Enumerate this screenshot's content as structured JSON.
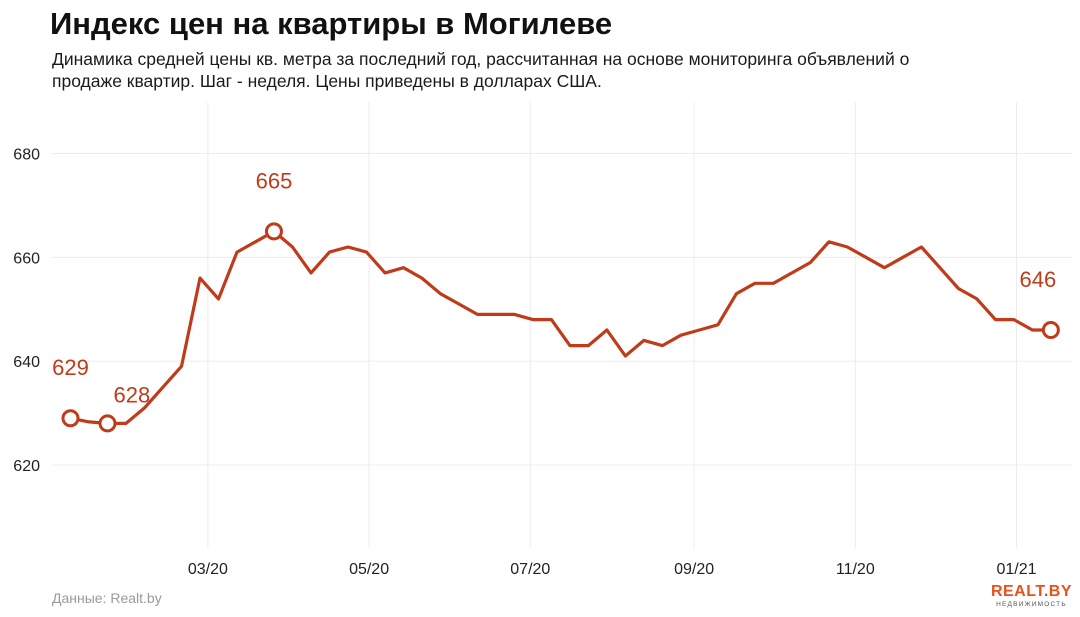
{
  "header": {
    "title": "Индекс цен на квартиры в Могилеве",
    "subtitle": "Динамика средней цены кв. метра за последний год, рассчитанная на основе мониторинга объявлений о продаже квартир. Шаг - неделя. Цены приведены в долларах США."
  },
  "footer": {
    "source": "Данные: Realt.by",
    "logo_main": "REALT.BY",
    "logo_sub": "НЕДВИЖИМОСТЬ"
  },
  "colors": {
    "line": "#bf3b1a",
    "label": "#bf3b1a",
    "grid": "#ececec",
    "axis_text": "#222222"
  },
  "chart_data": {
    "type": "line",
    "title": "Индекс цен на квартиры в Могилеве",
    "xlabel": "",
    "ylabel": "",
    "ylim": [
      604,
      688
    ],
    "yticks": [
      620,
      640,
      660,
      680
    ],
    "xticks": [
      {
        "label": "03/20",
        "date": "2020-03-01"
      },
      {
        "label": "05/20",
        "date": "2020-05-01"
      },
      {
        "label": "07/20",
        "date": "2020-07-01"
      },
      {
        "label": "09/20",
        "date": "2020-09-01"
      },
      {
        "label": "11/20",
        "date": "2020-11-01"
      },
      {
        "label": "01/21",
        "date": "2021-01-01"
      }
    ],
    "xlim": [
      "2020-01-02",
      "2021-01-22"
    ],
    "grid": true,
    "series": [
      {
        "values": [
          {
            "x": "2020-01-09",
            "y": 629
          },
          {
            "x": "2020-01-16",
            "y": 628.3
          },
          {
            "x": "2020-01-23",
            "y": 628
          },
          {
            "x": "2020-01-30",
            "y": 628
          },
          {
            "x": "2020-02-06",
            "y": 631
          },
          {
            "x": "2020-02-13",
            "y": 635
          },
          {
            "x": "2020-02-20",
            "y": 639
          },
          {
            "x": "2020-02-27",
            "y": 656
          },
          {
            "x": "2020-03-05",
            "y": 652
          },
          {
            "x": "2020-03-12",
            "y": 661
          },
          {
            "x": "2020-03-19",
            "y": 663
          },
          {
            "x": "2020-03-26",
            "y": 665
          },
          {
            "x": "2020-04-02",
            "y": 662
          },
          {
            "x": "2020-04-09",
            "y": 657
          },
          {
            "x": "2020-04-16",
            "y": 661
          },
          {
            "x": "2020-04-23",
            "y": 662
          },
          {
            "x": "2020-04-30",
            "y": 661
          },
          {
            "x": "2020-05-07",
            "y": 657
          },
          {
            "x": "2020-05-14",
            "y": 658
          },
          {
            "x": "2020-05-21",
            "y": 656
          },
          {
            "x": "2020-05-28",
            "y": 653
          },
          {
            "x": "2020-06-04",
            "y": 651
          },
          {
            "x": "2020-06-11",
            "y": 649
          },
          {
            "x": "2020-06-18",
            "y": 649
          },
          {
            "x": "2020-06-25",
            "y": 649
          },
          {
            "x": "2020-07-02",
            "y": 648
          },
          {
            "x": "2020-07-09",
            "y": 648
          },
          {
            "x": "2020-07-16",
            "y": 643
          },
          {
            "x": "2020-07-23",
            "y": 643
          },
          {
            "x": "2020-07-30",
            "y": 646
          },
          {
            "x": "2020-08-06",
            "y": 641
          },
          {
            "x": "2020-08-13",
            "y": 644
          },
          {
            "x": "2020-08-20",
            "y": 643
          },
          {
            "x": "2020-08-27",
            "y": 645
          },
          {
            "x": "2020-09-03",
            "y": 646
          },
          {
            "x": "2020-09-10",
            "y": 647
          },
          {
            "x": "2020-09-17",
            "y": 653
          },
          {
            "x": "2020-09-24",
            "y": 655
          },
          {
            "x": "2020-10-01",
            "y": 655
          },
          {
            "x": "2020-10-08",
            "y": 657
          },
          {
            "x": "2020-10-15",
            "y": 659
          },
          {
            "x": "2020-10-22",
            "y": 663
          },
          {
            "x": "2020-10-29",
            "y": 662
          },
          {
            "x": "2020-11-05",
            "y": 660
          },
          {
            "x": "2020-11-12",
            "y": 658
          },
          {
            "x": "2020-11-19",
            "y": 660
          },
          {
            "x": "2020-11-26",
            "y": 662
          },
          {
            "x": "2020-12-03",
            "y": 658
          },
          {
            "x": "2020-12-10",
            "y": 654
          },
          {
            "x": "2020-12-17",
            "y": 652
          },
          {
            "x": "2020-12-24",
            "y": 648
          },
          {
            "x": "2020-12-31",
            "y": 648
          },
          {
            "x": "2021-01-07",
            "y": 646
          },
          {
            "x": "2021-01-14",
            "y": 646
          }
        ]
      }
    ],
    "annotations": [
      {
        "text": "629",
        "x": "2020-01-09",
        "y": 629
      },
      {
        "text": "628",
        "x": "2020-01-23",
        "y": 628
      },
      {
        "text": "665",
        "x": "2020-03-26",
        "y": 665
      },
      {
        "text": "646",
        "x": "2021-01-14",
        "y": 646
      }
    ]
  }
}
